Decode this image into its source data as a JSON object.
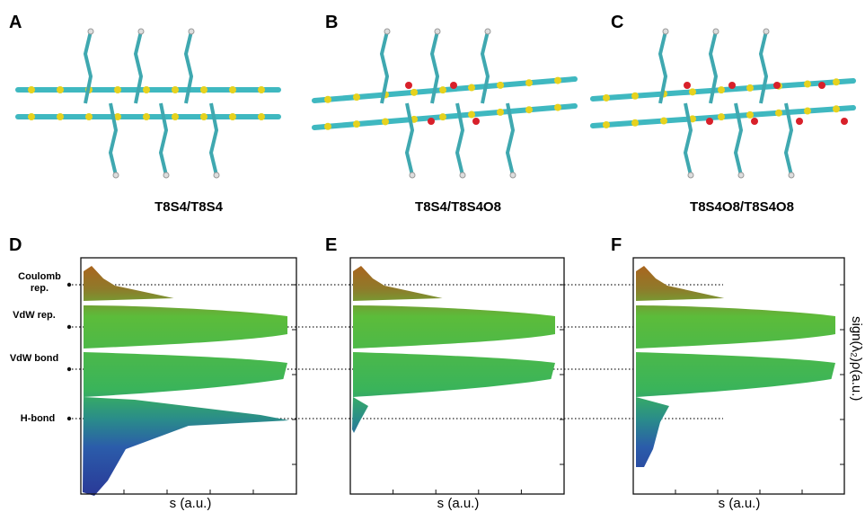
{
  "panels": [
    {
      "letter": "A",
      "caption": "T8S4/T8S4"
    },
    {
      "letter": "B",
      "caption": "T8S4/T8S4O8"
    },
    {
      "letter": "C",
      "caption": "T8S4O8/T8S4O8"
    }
  ],
  "plots": [
    {
      "letter": "D",
      "xlabel": "s (a.u.)"
    },
    {
      "letter": "E",
      "xlabel": "s (a.u.)"
    },
    {
      "letter": "F",
      "xlabel": "s (a.u.)"
    }
  ],
  "interaction_labels": [
    "Coulomb rep.",
    "VdW rep.",
    "VdW bond",
    "H-bond"
  ],
  "ylabel": "sign(λ₂)ρ(a.u.)"
}
